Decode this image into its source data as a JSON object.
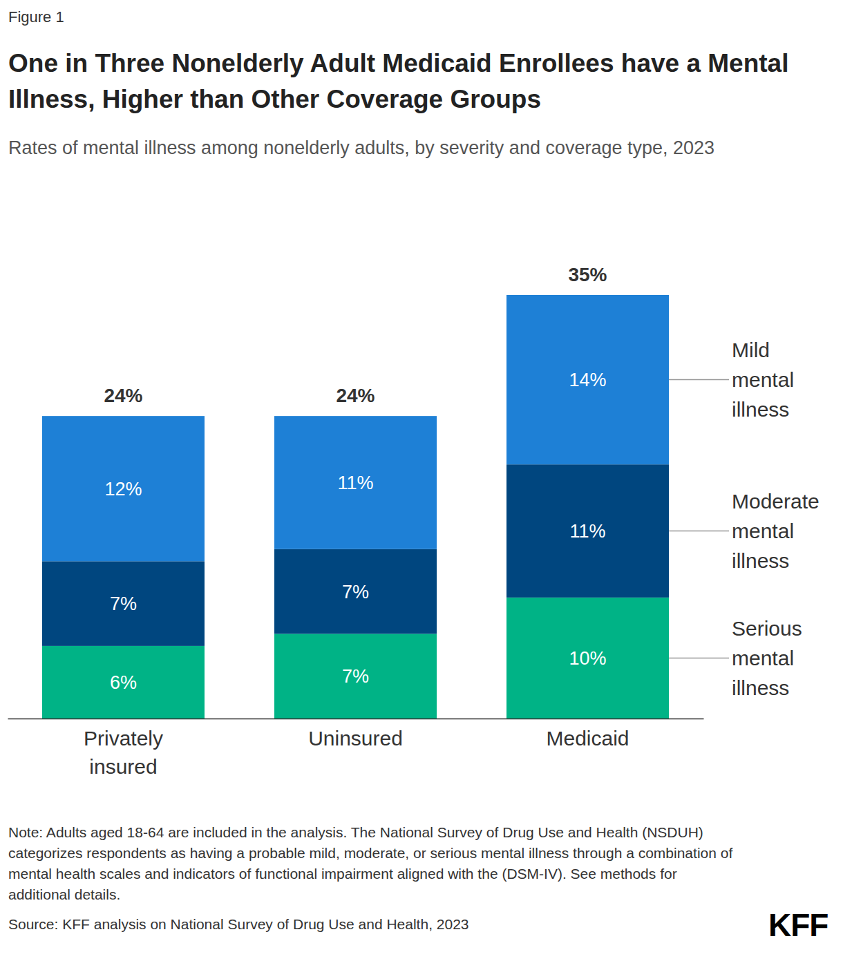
{
  "chart_data": {
    "type": "bar",
    "stacked": true,
    "data_labels": true,
    "tick_labels": "x",
    "legend": "right",
    "figure_label": "Figure 1",
    "title": "One in Three Nonelderly Adult Medicaid Enrollees have a Mental Illness, Higher than Other Coverage Groups",
    "subtitle": "Rates of mental illness among nonelderly adults, by severity and coverage type, 2023",
    "categories": [
      "Privately insured",
      "Uninsured",
      "Medicaid"
    ],
    "series": [
      {
        "name": "Serious mental illness",
        "color": "#00b386",
        "values": [
          6,
          7,
          10
        ],
        "value_labels": [
          "6%",
          "7%",
          "10%"
        ]
      },
      {
        "name": "Moderate mental illness",
        "color": "#00467f",
        "values": [
          7,
          7,
          11
        ],
        "value_labels": [
          "7%",
          "7%",
          "11%"
        ]
      },
      {
        "name": "Mild mental illness",
        "color": "#1e80d6",
        "values": [
          12,
          11,
          14
        ],
        "value_labels": [
          "12%",
          "11%",
          "14%"
        ]
      }
    ],
    "totals": [
      24,
      24,
      35
    ],
    "totals_labels": [
      "24%",
      "24%",
      "35%"
    ],
    "ylim": [
      0,
      35
    ],
    "note": "Note: Adults aged 18-64 are included in the analysis. The National Survey of Drug Use and Health (NSDUH) categorizes respondents as having a probable mild, moderate, or serious mental illness through a combination of mental health scales and indicators of functional impairment aligned with the (DSM-IV). See methods for additional details.",
    "source": "Source: KFF analysis on National Survey of Drug Use and Health, 2023",
    "logo": "KFF"
  }
}
